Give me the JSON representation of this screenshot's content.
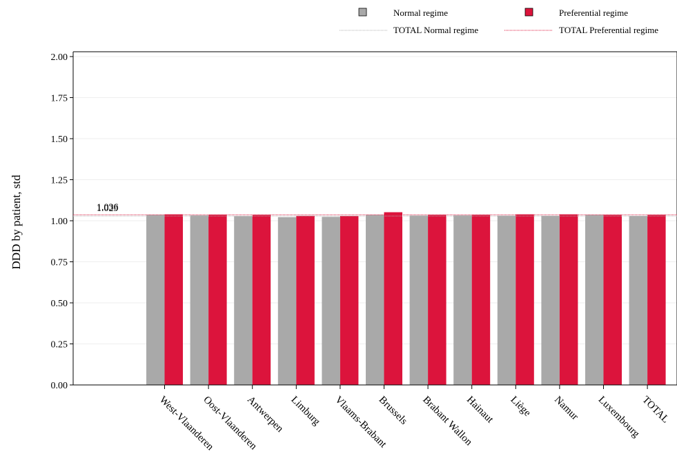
{
  "chart_data": {
    "type": "bar",
    "title": "",
    "xlabel": "",
    "ylabel": "DDD by patient, std",
    "ylim": [
      0,
      2.0
    ],
    "yticks": [
      "0.00",
      "0.25",
      "0.50",
      "0.75",
      "1.00",
      "1.25",
      "1.50",
      "1.75",
      "2.00"
    ],
    "grid": true,
    "legend_position": "top-right",
    "categories": [
      "West-Vlaanderen",
      "Oost-Vlaanderen",
      "Antwerpen",
      "Limburg",
      "Vlaams-Brabant",
      "Brussels",
      "Brabant Wallon",
      "Hainaut",
      "Liège",
      "Namur",
      "Luxembourg",
      "TOTAL"
    ],
    "series": [
      {
        "name": "Normal regime",
        "color": "#a9a9a9",
        "values": [
          1.036,
          1.033,
          1.028,
          1.022,
          1.024,
          1.036,
          1.032,
          1.033,
          1.031,
          1.03,
          1.036,
          1.029
        ]
      },
      {
        "name": "Preferential regime",
        "color": "#dc143c",
        "values": [
          1.039,
          1.037,
          1.036,
          1.03,
          1.029,
          1.052,
          1.036,
          1.036,
          1.039,
          1.039,
          1.036,
          1.036
        ]
      }
    ],
    "reference_lines": [
      {
        "name": "TOTAL Normal regime",
        "value": 1.029,
        "label": "1.029",
        "color": "#b0b0b0"
      },
      {
        "name": "TOTAL Preferential regime",
        "value": 1.036,
        "label": "1.036",
        "color": "#dc143c"
      }
    ]
  }
}
